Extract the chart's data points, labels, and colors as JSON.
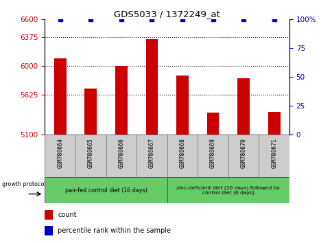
{
  "title": "GDS5033 / 1372249_at",
  "samples": [
    "GSM780664",
    "GSM780665",
    "GSM780666",
    "GSM780667",
    "GSM780668",
    "GSM780669",
    "GSM780670",
    "GSM780671"
  ],
  "bar_values": [
    6090,
    5700,
    6000,
    6340,
    5870,
    5390,
    5840,
    5400
  ],
  "bar_color": "#cc0000",
  "dot_color": "#0000cc",
  "ylim_left": [
    5100,
    6600
  ],
  "yticks_left": [
    5100,
    5625,
    6000,
    6375,
    6600
  ],
  "ylim_right": [
    0,
    100
  ],
  "yticks_right": [
    0,
    25,
    50,
    75,
    100
  ],
  "ytick_labels_right": [
    "0",
    "25",
    "50",
    "75",
    "100%"
  ],
  "group1_label": "pair-fed control diet (16 days)",
  "group2_label": "zinc-deficient diet (10 days) followed by\ncontrol diet (6 days)",
  "group1_color": "#66cc66",
  "group2_color": "#66cc66",
  "protocol_label": "growth protocol",
  "legend_count_label": "count",
  "legend_percentile_label": "percentile rank within the sample",
  "tick_color_left": "#cc0000",
  "tick_color_right": "#0000cc",
  "bar_width": 0.4,
  "figsize": [
    4.85,
    3.54
  ],
  "dpi": 100,
  "cell_color": "#cccccc",
  "grid_yticks": [
    5625,
    6000,
    6375
  ]
}
